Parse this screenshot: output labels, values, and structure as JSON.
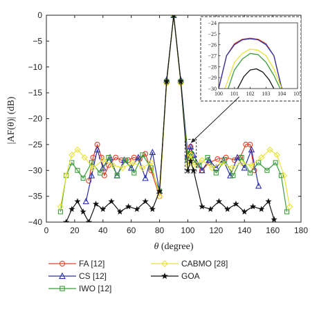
{
  "chart_data": [
    {
      "type": "line",
      "xlabel_prefix": "θ",
      "xlabel_rest": " (degree)",
      "ylabel": "|AF(θ)| (dB)",
      "xlim": [
        0,
        180
      ],
      "ylim": [
        -40,
        0
      ],
      "xticks": [
        0,
        20,
        40,
        60,
        80,
        100,
        120,
        140,
        160,
        180
      ],
      "yticks": [
        0,
        -5,
        -10,
        -15,
        -20,
        -25,
        -30,
        -35,
        -40
      ],
      "grid": false,
      "legend_position": "bottom",
      "series": [
        {
          "name": "FA [12]",
          "color": "#d9442a",
          "marker": "circle",
          "x": [
            30,
            33,
            36,
            39,
            41,
            44,
            49,
            53,
            58,
            62,
            66,
            70,
            74,
            80,
            85,
            90,
            95,
            100,
            102,
            104,
            110,
            115,
            121,
            127,
            133,
            137,
            141,
            144,
            147
          ],
          "y": [
            -32.0,
            -27.5,
            -25.0,
            -27.5,
            -31.0,
            -29.0,
            -27.5,
            -28.0,
            -28.0,
            -27.5,
            -27.8,
            -26.8,
            -30.0,
            -35.0,
            -13.0,
            0.0,
            -13.0,
            -28.0,
            -25.4,
            -28.0,
            -30.0,
            -28.5,
            -27.8,
            -27.5,
            -28.0,
            -27.5,
            -25.0,
            -25.0,
            -30.0
          ]
        },
        {
          "name": "CS [12]",
          "color": "#2b2fa8",
          "marker": "triangle",
          "x": [
            28,
            32,
            36,
            40,
            45,
            50,
            55,
            60,
            65,
            70,
            75,
            80,
            85,
            90,
            95,
            100,
            102,
            104,
            110,
            115,
            120,
            125,
            130,
            135,
            140,
            145,
            150
          ],
          "y": [
            -36.0,
            -31.0,
            -26.0,
            -29.5,
            -27.5,
            -31.0,
            -28.0,
            -29.5,
            -27.5,
            -31.5,
            -26.5,
            -34.0,
            -12.5,
            0.0,
            -12.5,
            -27.0,
            -25.4,
            -27.0,
            -30.0,
            -28.0,
            -29.5,
            -28.0,
            -31.0,
            -27.5,
            -29.5,
            -26.0,
            -33.0
          ]
        },
        {
          "name": "IWO [12]",
          "color": "#3c9c3a",
          "marker": "square",
          "x": [
            10,
            14,
            18,
            22,
            26,
            32,
            38,
            44,
            50,
            56,
            62,
            68,
            74,
            80,
            85,
            90,
            95,
            100,
            102,
            104,
            108,
            114,
            120,
            126,
            132,
            138,
            144,
            150,
            156,
            162,
            166,
            170
          ],
          "y": [
            -38.0,
            -31.0,
            -28.5,
            -30.0,
            -31.5,
            -28.5,
            -30.5,
            -27.5,
            -31.0,
            -28.0,
            -30.5,
            -27.0,
            -29.5,
            -34.0,
            -12.8,
            0.0,
            -12.8,
            -28.0,
            -26.7,
            -28.0,
            -29.0,
            -27.5,
            -30.5,
            -28.0,
            -31.0,
            -27.5,
            -30.5,
            -28.5,
            -30.0,
            -28.5,
            -31.0,
            -38.0
          ]
        },
        {
          "name": "CABMO [28]",
          "color": "#e8e23a",
          "marker": "diamond",
          "x": [
            10,
            14,
            18,
            22,
            27,
            33,
            40,
            47,
            54,
            61,
            68,
            74,
            80,
            85,
            90,
            95,
            100,
            102,
            104,
            110,
            117,
            124,
            131,
            138,
            145,
            152,
            158,
            163,
            168,
            172
          ],
          "y": [
            -37.0,
            -31.0,
            -27.0,
            -26.0,
            -27.5,
            -29.5,
            -28.0,
            -29.0,
            -29.5,
            -28.5,
            -29.5,
            -28.5,
            -35.0,
            -13.2,
            0.0,
            -13.2,
            -29.0,
            -27.0,
            -29.0,
            -28.0,
            -29.5,
            -28.5,
            -29.5,
            -28.5,
            -29.0,
            -27.5,
            -26.0,
            -27.0,
            -31.0,
            -37.0
          ]
        },
        {
          "name": "GOA",
          "color": "#111111",
          "marker": "star",
          "x": [
            14,
            18,
            22,
            26,
            30,
            35,
            40,
            46,
            52,
            58,
            64,
            70,
            75,
            80,
            85,
            90,
            95,
            100,
            102,
            104,
            110,
            116,
            122,
            128,
            134,
            140,
            146,
            152,
            157,
            161
          ],
          "y": [
            -40.0,
            -37.5,
            -36.0,
            -38.0,
            -40.0,
            -36.5,
            -37.5,
            -36.0,
            -38.0,
            -37.0,
            -37.5,
            -36.0,
            -37.5,
            -34.0,
            -12.8,
            0.0,
            -12.8,
            -30.0,
            -28.2,
            -30.0,
            -37.0,
            -37.5,
            -36.0,
            -37.5,
            -36.5,
            -38.0,
            -37.0,
            -37.5,
            -36.0,
            -39.5
          ]
        }
      ]
    },
    {
      "type": "line",
      "xlim": [
        100,
        105
      ],
      "ylim": [
        -30,
        -24
      ],
      "xticks": [
        100,
        101,
        102,
        103,
        104,
        105
      ],
      "yticks": [
        -24,
        -25,
        -26,
        -27,
        -28,
        -29,
        -30
      ],
      "series": [
        {
          "name": "FA [12]",
          "color": "#d9442a",
          "x": [
            100,
            100.5,
            101,
            101.5,
            102,
            102.5,
            103,
            103.5,
            104
          ],
          "y": [
            -30.0,
            -27.0,
            -25.9,
            -25.5,
            -25.4,
            -25.5,
            -25.9,
            -27.0,
            -30.0
          ]
        },
        {
          "name": "CS [12]",
          "color": "#2b2fa8",
          "x": [
            100,
            100.5,
            101,
            101.5,
            102,
            102.5,
            103,
            103.5,
            104
          ],
          "y": [
            -30.0,
            -27.0,
            -26.0,
            -25.55,
            -25.45,
            -25.55,
            -26.0,
            -27.0,
            -30.0
          ]
        },
        {
          "name": "IWO [12]",
          "color": "#3c9c3a",
          "x": [
            100.6,
            101,
            101.5,
            102,
            102.5,
            103,
            103.5,
            103.9
          ],
          "y": [
            -30.0,
            -28.3,
            -27.3,
            -26.8,
            -26.9,
            -27.6,
            -28.8,
            -30.0
          ]
        },
        {
          "name": "CABMO [28]",
          "color": "#e8e23a",
          "x": [
            100.4,
            101,
            101.5,
            102,
            102.5,
            103,
            103.5,
            104
          ],
          "y": [
            -30.0,
            -27.6,
            -26.8,
            -26.4,
            -26.5,
            -27.0,
            -28.2,
            -30.0
          ]
        },
        {
          "name": "GOA",
          "color": "#111111",
          "x": [
            101.2,
            101.6,
            102,
            102.4,
            102.8,
            103.2,
            103.5
          ],
          "y": [
            -30.0,
            -28.9,
            -28.3,
            -28.2,
            -28.5,
            -29.2,
            -30.0
          ]
        }
      ]
    }
  ]
}
